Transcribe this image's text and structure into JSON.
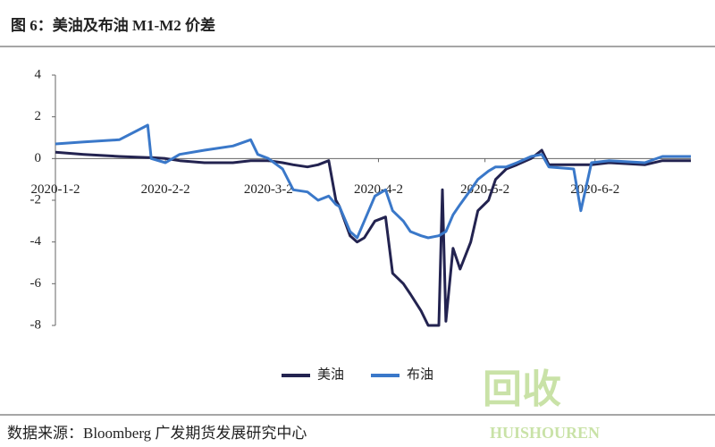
{
  "chart_data": {
    "type": "line",
    "title": "图 6：美油及布油 M1-M2 价差",
    "source": "数据来源：Bloomberg 广发期货发展研究中心",
    "watermark": [
      "回收",
      "HUISHOUREN"
    ],
    "x": [
      "2020-1-2",
      "2020-1-10",
      "2020-1-20",
      "2020-1-28",
      "2020-1-29",
      "2020-2-2",
      "2020-2-6",
      "2020-2-13",
      "2020-2-21",
      "2020-2-26",
      "2020-2-28",
      "2020-3-2",
      "2020-3-6",
      "2020-3-9",
      "2020-3-13",
      "2020-3-16",
      "2020-3-19",
      "2020-3-21",
      "2020-3-22",
      "2020-3-25",
      "2020-3-27",
      "2020-3-29",
      "2020-4-1",
      "2020-4-4",
      "2020-4-6",
      "2020-4-9",
      "2020-4-11",
      "2020-4-14",
      "2020-4-16",
      "2020-4-19",
      "2020-4-20",
      "2020-4-21",
      "2020-4-23",
      "2020-4-25",
      "2020-4-28",
      "2020-4-30",
      "2020-5-3",
      "2020-5-5",
      "2020-5-8",
      "2020-5-11",
      "2020-5-15",
      "2020-5-18",
      "2020-5-20",
      "2020-5-27",
      "2020-5-29",
      "2020-6-1",
      "2020-6-6",
      "2020-6-16",
      "2020-6-21",
      "2020-6-29"
    ],
    "series": [
      {
        "name": "美油",
        "color": "#232350",
        "values": [
          0.3,
          0.2,
          0.1,
          0.05,
          0.05,
          0,
          -0.1,
          -0.2,
          -0.2,
          -0.1,
          -0.1,
          -0.1,
          -0.2,
          -0.3,
          -0.4,
          -0.3,
          -0.1,
          -2.0,
          -2.3,
          -3.7,
          -4.0,
          -3.8,
          -3.0,
          -2.8,
          -5.5,
          -6.0,
          -6.5,
          -7.3,
          -8.0,
          -8.0,
          -1.5,
          -7.8,
          -4.3,
          -5.3,
          -4.0,
          -2.5,
          -2.0,
          -1.0,
          -0.5,
          -0.3,
          0.0,
          0.4,
          -0.3,
          -0.3,
          -0.3,
          -0.3,
          -0.2,
          -0.3,
          -0.1,
          -0.1
        ]
      },
      {
        "name": "布油",
        "color": "#3a78c9",
        "values": [
          0.7,
          0.8,
          0.9,
          1.6,
          0.0,
          -0.2,
          0.2,
          0.4,
          0.6,
          0.9,
          0.2,
          0.0,
          -0.5,
          -1.5,
          -1.6,
          -2.0,
          -1.8,
          -2.2,
          -2.3,
          -3.5,
          -3.8,
          -3.0,
          -1.8,
          -1.5,
          -2.5,
          -3.0,
          -3.5,
          -3.7,
          -3.8,
          -3.7,
          -3.6,
          -3.5,
          -2.7,
          -2.2,
          -1.5,
          -1.0,
          -0.6,
          -0.4,
          -0.4,
          -0.2,
          0.1,
          0.2,
          -0.4,
          -0.5,
          -2.5,
          -0.2,
          -0.1,
          -0.2,
          0.1,
          0.1
        ]
      }
    ],
    "xlim": [
      "2020-1-2",
      "2020-6-29"
    ],
    "xticks": [
      "2020-1-2",
      "2020-2-2",
      "2020-3-2",
      "2020-4-2",
      "2020-5-2",
      "2020-6-2"
    ],
    "ylim": [
      -8,
      4
    ],
    "yticks": [
      -8,
      -6,
      -4,
      -2,
      0,
      2,
      4
    ]
  }
}
